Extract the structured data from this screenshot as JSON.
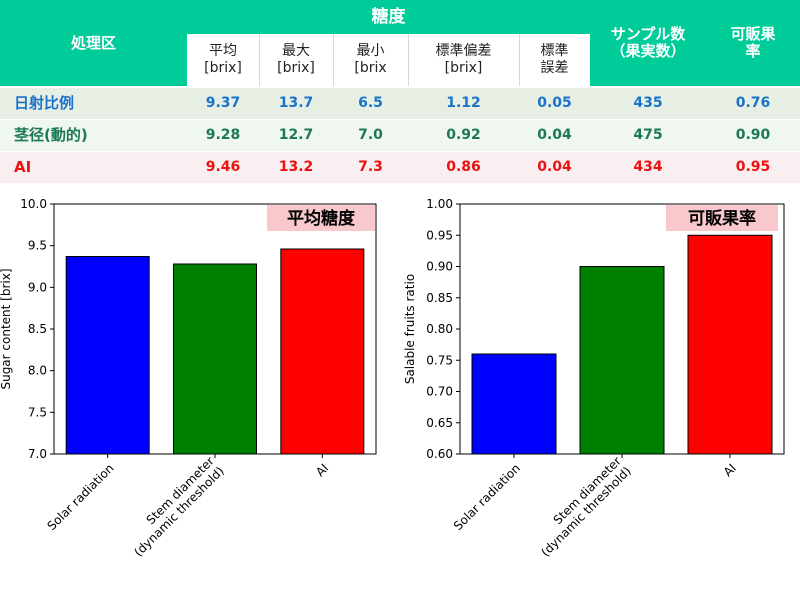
{
  "table": {
    "header": {
      "group": "処理区",
      "sugar_group": "糖度",
      "sugar_cols": [
        {
          "l1": "平均",
          "l2": "[brix]"
        },
        {
          "l1": "最大",
          "l2": "[brix]"
        },
        {
          "l1": "最小",
          "l2": "[brix"
        },
        {
          "l1": "標準偏差",
          "l2": "[brix]"
        },
        {
          "l1": "標準",
          "l2": "誤差"
        }
      ],
      "sample": {
        "l1": "サンプル数",
        "l2": "（果実数）"
      },
      "salable": {
        "l1": "可販果",
        "l2": "率"
      }
    },
    "rows": [
      {
        "name": "日射比例",
        "color": "#1a73c8",
        "values": [
          "9.37",
          "13.7",
          "6.5",
          "1.12",
          "0.05",
          "435",
          "0.76"
        ]
      },
      {
        "name": "茎径(動的)",
        "color": "#1b7a55",
        "values": [
          "9.28",
          "12.7",
          "7.0",
          "0.92",
          "0.04",
          "475",
          "0.90"
        ]
      },
      {
        "name": "AI",
        "color": "#ee1111",
        "values": [
          "9.46",
          "13.2",
          "7.3",
          "0.86",
          "0.04",
          "434",
          "0.95"
        ]
      }
    ]
  },
  "chart_data": [
    {
      "type": "bar",
      "badge": "平均糖度",
      "ylabel": "Sugar content [brix]",
      "xlabel": "",
      "ylim": [
        7.0,
        10.0
      ],
      "yticks": [
        "7.0",
        "7.5",
        "8.0",
        "8.5",
        "9.0",
        "9.5",
        "10.0"
      ],
      "categories": [
        {
          "l1": "Solar radiation",
          "l2": ""
        },
        {
          "l1": "Stem diameter",
          "l2": "(dynamic threshold)"
        },
        {
          "l1": "AI",
          "l2": ""
        }
      ],
      "values": [
        9.37,
        9.28,
        9.46
      ],
      "colors": [
        "#0000ff",
        "#008000",
        "#ff0000"
      ]
    },
    {
      "type": "bar",
      "badge": "可販果率",
      "ylabel": "Salable fruits ratio",
      "xlabel": "",
      "ylim": [
        0.6,
        1.0
      ],
      "yticks": [
        "0.60",
        "0.65",
        "0.70",
        "0.75",
        "0.80",
        "0.85",
        "0.90",
        "0.95",
        "1.00"
      ],
      "categories": [
        {
          "l1": "Solar radiation",
          "l2": ""
        },
        {
          "l1": "Stem diameter",
          "l2": "(dynamic threshold)"
        },
        {
          "l1": "AI",
          "l2": ""
        }
      ],
      "values": [
        0.76,
        0.9,
        0.95
      ],
      "colors": [
        "#0000ff",
        "#008000",
        "#ff0000"
      ]
    }
  ],
  "colors": {
    "header": "#00cc99",
    "badge_bg": "#f8c8cc"
  }
}
